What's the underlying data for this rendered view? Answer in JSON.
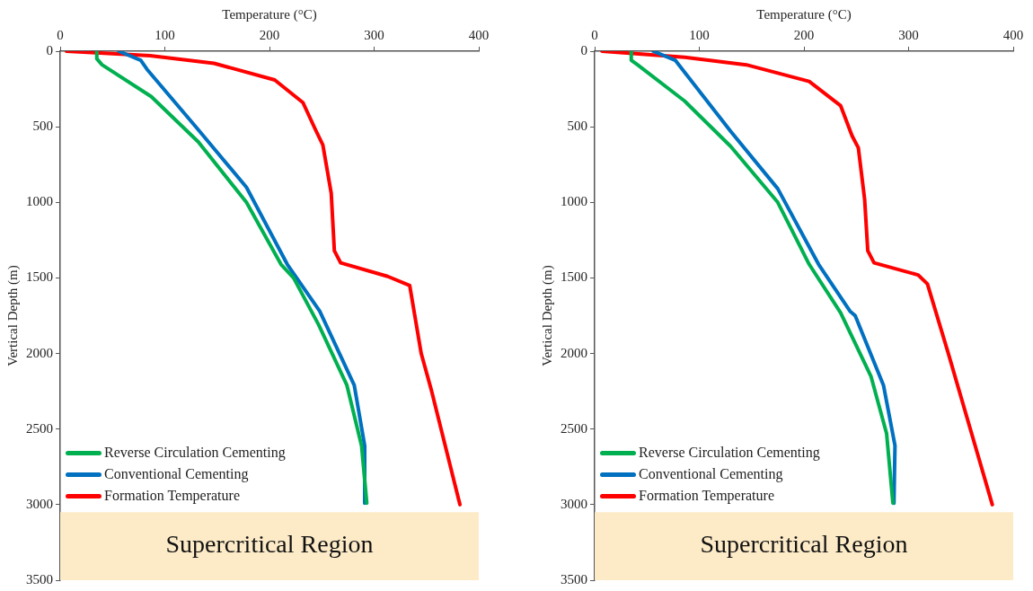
{
  "chart_data": [
    {
      "type": "line",
      "xlabel": "Temperature (°C)",
      "ylabel": "Vertical Depth (m)",
      "xlim": [
        0,
        400
      ],
      "xticks": [
        0,
        100,
        200,
        300,
        400
      ],
      "ylim": [
        3500,
        0
      ],
      "yticks": [
        0,
        500,
        1000,
        1500,
        2000,
        2500,
        3000,
        3500
      ],
      "grid": false,
      "legend": "bottom left",
      "bands": [
        {
          "axis": "y",
          "from": 3050,
          "to": 3500,
          "label": "Supercritical Region",
          "color": "#fdebc8"
        }
      ],
      "series": [
        {
          "name": "Reverse Circulation Cementing",
          "color": "#00b050",
          "x": [
            35,
            35,
            40,
            87,
            132,
            178,
            211,
            223,
            247,
            274,
            288,
            293
          ],
          "values": [
            0,
            50,
            90,
            300,
            600,
            1000,
            1410,
            1500,
            1810,
            2210,
            2610,
            2990
          ]
        },
        {
          "name": "Conventional Cementing",
          "color": "#0070c0",
          "x": [
            56,
            77,
            83,
            132,
            178,
            217,
            248,
            281,
            291,
            291
          ],
          "values": [
            0,
            60,
            120,
            520,
            900,
            1410,
            1720,
            2210,
            2610,
            2990
          ]
        },
        {
          "name": "Formation Temperature",
          "color": "#ff0000",
          "x": [
            6,
            86,
            147,
            205,
            232,
            244,
            251,
            259,
            262,
            268,
            313,
            334,
            345,
            355,
            382
          ],
          "values": [
            0,
            30,
            80,
            190,
            340,
            520,
            620,
            940,
            1320,
            1400,
            1490,
            1550,
            2000,
            2250,
            3000
          ]
        }
      ]
    },
    {
      "type": "line",
      "xlabel": "Temperature (°C)",
      "ylabel": "Vertical Depth (m)",
      "xlim": [
        0,
        400
      ],
      "xticks": [
        0,
        100,
        200,
        300,
        400
      ],
      "ylim": [
        3500,
        0
      ],
      "yticks": [
        0,
        500,
        1000,
        1500,
        2000,
        2500,
        3000,
        3500
      ],
      "grid": false,
      "legend": "bottom left",
      "bands": [
        {
          "axis": "y",
          "from": 3050,
          "to": 3500,
          "label": "Supercritical Region",
          "color": "#fdebc8"
        }
      ],
      "series": [
        {
          "name": "Reverse Circulation Cementing",
          "color": "#00b050",
          "x": [
            35,
            35,
            41,
            86,
            130,
            175,
            205,
            235,
            264,
            279,
            285
          ],
          "values": [
            0,
            60,
            90,
            330,
            630,
            1000,
            1410,
            1730,
            2150,
            2530,
            2990
          ]
        },
        {
          "name": "Conventional Cementing",
          "color": "#0070c0",
          "x": [
            56,
            77,
            86,
            130,
            175,
            214,
            244,
            249,
            276,
            287,
            286
          ],
          "values": [
            0,
            60,
            140,
            530,
            910,
            1410,
            1720,
            1750,
            2210,
            2610,
            2990
          ]
        },
        {
          "name": "Formation Temperature",
          "color": "#ff0000",
          "x": [
            7,
            86,
            145,
            205,
            235,
            246,
            252,
            258,
            261,
            267,
            309,
            318,
            338,
            380
          ],
          "values": [
            0,
            40,
            90,
            200,
            360,
            560,
            640,
            980,
            1320,
            1400,
            1480,
            1540,
            2000,
            3000
          ]
        }
      ]
    }
  ]
}
